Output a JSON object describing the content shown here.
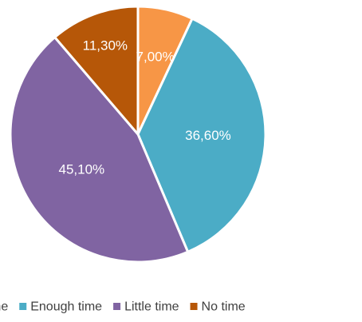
{
  "chart_data": {
    "type": "pie",
    "title": "",
    "slices": [
      {
        "name": "Plenty of time",
        "legend_label": "time",
        "value": 7.0,
        "label": "7,00%",
        "color": "#F79646"
      },
      {
        "name": "Enough time",
        "legend_label": "Enough time",
        "value": 36.6,
        "label": "36,60%",
        "color": "#4BACC6"
      },
      {
        "name": "Little time",
        "legend_label": "Little time",
        "value": 45.1,
        "label": "45,10%",
        "color": "#8064A2"
      },
      {
        "name": "No time",
        "legend_label": "No time",
        "value": 11.3,
        "label": "11,30%",
        "color": "#B65708"
      }
    ],
    "legend_position": "bottom",
    "start_angle_deg": 0,
    "direction": "clockwise"
  }
}
